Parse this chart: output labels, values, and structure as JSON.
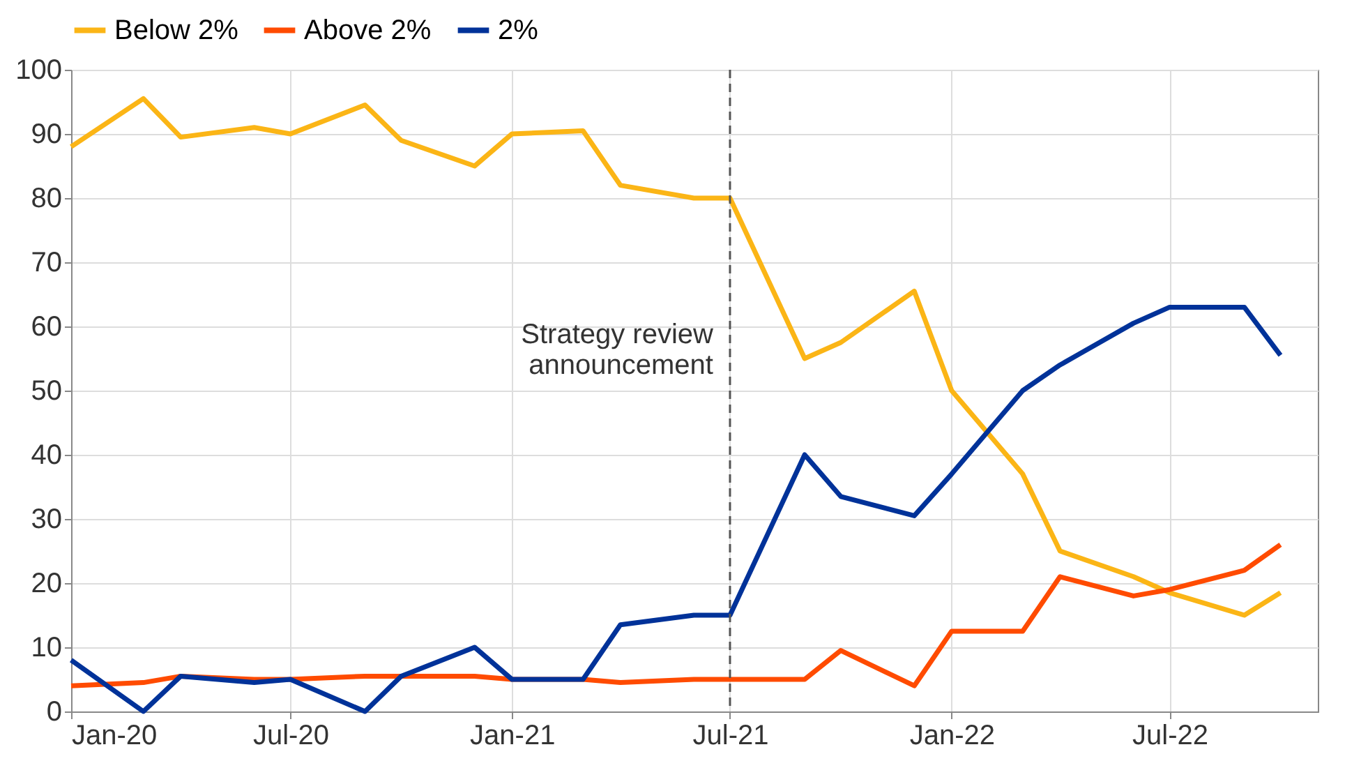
{
  "chart_data": {
    "type": "line",
    "x": [
      "2020-01",
      "2020-03",
      "2020-04",
      "2020-06",
      "2020-07",
      "2020-09",
      "2020-10",
      "2020-12",
      "2021-01",
      "2021-03",
      "2021-04",
      "2021-06",
      "2021-07",
      "2021-09",
      "2021-10",
      "2021-12",
      "2022-01",
      "2022-03",
      "2022-04",
      "2022-06",
      "2022-07",
      "2022-09",
      "2022-10"
    ],
    "series": [
      {
        "name": "Below 2%",
        "color": "#fbb516",
        "values": [
          88,
          95.5,
          89.5,
          91,
          90,
          94.5,
          89,
          85,
          90,
          90.5,
          82,
          80,
          80,
          55,
          57.5,
          65.5,
          50,
          37,
          25,
          21,
          18.5,
          15,
          18.5
        ]
      },
      {
        "name": "Above 2%",
        "color": "#ff4b00",
        "values": [
          4,
          4.5,
          5.5,
          5,
          5,
          5.5,
          5.5,
          5.5,
          5,
          5,
          4.5,
          5,
          5,
          5,
          9.5,
          4,
          12.5,
          12.5,
          21,
          18,
          19,
          22,
          26
        ]
      },
      {
        "name": "2%",
        "color": "#003299",
        "values": [
          8,
          0,
          5.5,
          4.5,
          5,
          0,
          5.5,
          10,
          5,
          5,
          13.5,
          15,
          15,
          40,
          33.5,
          30.5,
          37,
          50,
          54,
          60.5,
          63,
          63,
          55.5
        ]
      }
    ],
    "xlim": [
      "2020-01",
      "2022-11"
    ],
    "xticks": [
      {
        "value": "2020-01",
        "label": "Jan-20"
      },
      {
        "value": "2020-07",
        "label": "Jul-20"
      },
      {
        "value": "2021-01",
        "label": "Jan-21"
      },
      {
        "value": "2021-07",
        "label": "Jul-21"
      },
      {
        "value": "2022-01",
        "label": "Jan-22"
      },
      {
        "value": "2022-07",
        "label": "Jul-22"
      }
    ],
    "ylim": [
      0,
      100
    ],
    "yticks": [
      0,
      10,
      20,
      30,
      40,
      50,
      60,
      70,
      80,
      90,
      100
    ],
    "ref_lines": [
      {
        "axis": "x",
        "value": "2021-07",
        "label": "Strategy review\nannouncement",
        "color": "#555555",
        "line_style": "dashed"
      }
    ],
    "grid": true,
    "legend": "top",
    "marker": "none",
    "line_style": "solid"
  }
}
